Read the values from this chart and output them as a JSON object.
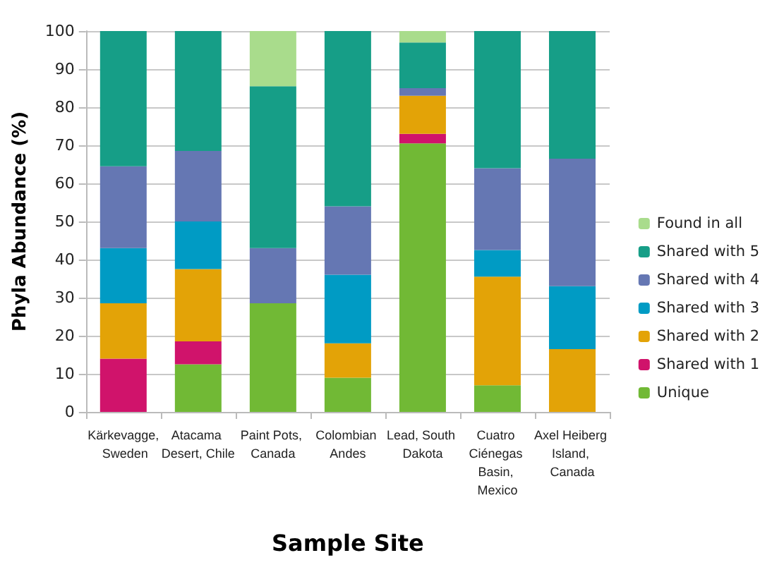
{
  "chart_data": {
    "type": "bar",
    "stacked": true,
    "xlabel": "Sample Site",
    "ylabel": "Phyla Abundance (%)",
    "categories": [
      "Kärkevagge, Sweden",
      "Atacama Desert, Chile",
      "Paint Pots, Canada",
      "Colombian Andes",
      "Lead, South Dakota",
      "Cuatro Ciénegas Basin, Mexico",
      "Axel Heiberg Island, Canada"
    ],
    "series": [
      {
        "name": "Unique",
        "color": "#71b935",
        "values": [
          0,
          12.5,
          28.5,
          9,
          70.5,
          7,
          0
        ]
      },
      {
        "name": "Shared with 1",
        "color": "#d0136b",
        "values": [
          14,
          6,
          0,
          0,
          2.5,
          0,
          0
        ]
      },
      {
        "name": "Shared with 2",
        "color": "#e3a307",
        "values": [
          14.5,
          19,
          0,
          9,
          10,
          28.5,
          16.5
        ]
      },
      {
        "name": "Shared with 3",
        "color": "#009bc4",
        "values": [
          14.5,
          12.5,
          0,
          18,
          0,
          7,
          16.5
        ]
      },
      {
        "name": "Shared with 4",
        "color": "#6577b3",
        "values": [
          21.5,
          18.5,
          14.5,
          18,
          2,
          21.5,
          33.5
        ]
      },
      {
        "name": "Shared with 5",
        "color": "#169e87",
        "values": [
          35.5,
          31.5,
          42.5,
          46,
          12,
          36,
          33.5
        ]
      },
      {
        "name": "Found in all",
        "color": "#a9dc8c",
        "values": [
          0,
          0,
          14.5,
          0,
          3,
          0,
          0
        ]
      }
    ],
    "ylim": [
      0,
      100
    ],
    "yticks": [
      0,
      10,
      20,
      30,
      40,
      50,
      60,
      70,
      80,
      90,
      100
    ],
    "grid": "y",
    "legend": "right"
  }
}
